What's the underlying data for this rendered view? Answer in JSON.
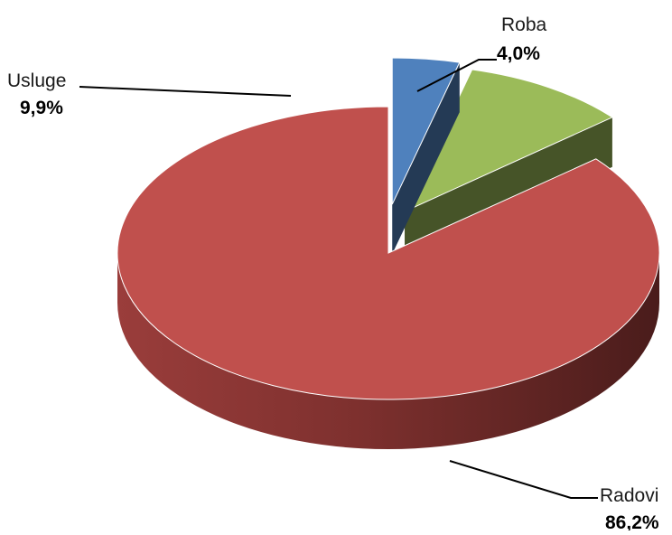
{
  "chart_data": {
    "type": "pie",
    "title": "",
    "style": "3d-exploded",
    "legend": "none",
    "slices": [
      {
        "label": "Roba",
        "value_label": "4,0%",
        "value": 4.0,
        "color": "#4F81BD"
      },
      {
        "label": "Usluge",
        "value_label": "9,9%",
        "value": 9.9,
        "color": "#9BBB59"
      },
      {
        "label": "Radovi",
        "value_label": "86,2%",
        "value": 86.2,
        "color": "#C0504D"
      }
    ]
  }
}
